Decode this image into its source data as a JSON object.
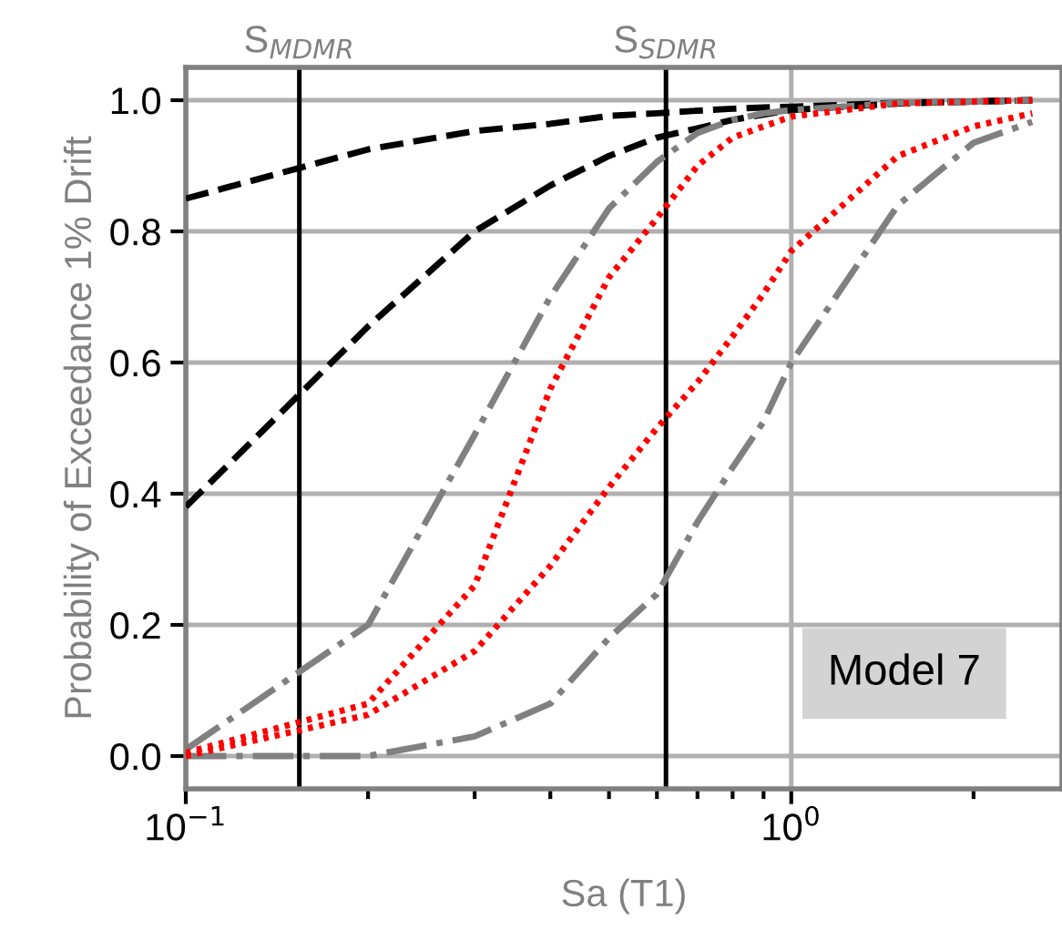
{
  "chart_data": {
    "type": "line",
    "xlabel": "Sa (T1)",
    "ylabel": "Probability of Exceedance 1% Drift",
    "log": "x",
    "grid": true,
    "marker": "none",
    "x": [
      0.1,
      0.2,
      0.3,
      0.4,
      0.5,
      0.6,
      0.7,
      0.8,
      0.9,
      1.0,
      1.5,
      2.0,
      2.5
    ],
    "xlim": [
      0.1,
      2.8
    ],
    "xticks": [
      {
        "value": 0.1,
        "label": "10$^{−1}$"
      },
      {
        "value": 0.2,
        "label": null
      },
      {
        "value": 0.3,
        "label": null
      },
      {
        "value": 0.4,
        "label": null
      },
      {
        "value": 0.5,
        "label": null
      },
      {
        "value": 0.6,
        "label": null
      },
      {
        "value": 0.7,
        "label": null
      },
      {
        "value": 0.8,
        "label": null
      },
      {
        "value": 0.9,
        "label": null
      },
      {
        "value": 1.0,
        "label": "10$^{0}$"
      },
      {
        "value": 2.0,
        "label": null
      }
    ],
    "ylim": [
      -0.05,
      1.05
    ],
    "yticks": [
      {
        "value": 0.0,
        "label": "0.0"
      },
      {
        "value": 0.2,
        "label": "0.2"
      },
      {
        "value": 0.4,
        "label": "0.4"
      },
      {
        "value": 0.6,
        "label": "0.6"
      },
      {
        "value": 0.8,
        "label": "0.8"
      },
      {
        "value": 1.0,
        "label": "1.0"
      }
    ],
    "series": [
      {
        "color": "#000000",
        "line_style": "dashed",
        "values": [
          0.85,
          0.925,
          0.953,
          0.964,
          0.976,
          0.98,
          0.984,
          0.987,
          0.989,
          0.99,
          0.996,
          0.998,
          1.0
        ]
      },
      {
        "color": "#000000",
        "line_style": "dashed",
        "values": [
          0.38,
          0.655,
          0.8,
          0.87,
          0.915,
          0.943,
          0.957,
          0.97,
          0.978,
          0.985,
          0.995,
          0.998,
          1.0
        ]
      },
      {
        "color": "#808080",
        "line_style": "dashdot",
        "values": [
          0.01,
          0.2,
          0.49,
          0.7,
          0.835,
          0.906,
          0.95,
          0.97,
          0.98,
          0.985,
          0.996,
          0.998,
          1.0
        ]
      },
      {
        "color": "#ff0000",
        "line_style": "dotted",
        "values": [
          0.005,
          0.08,
          0.26,
          0.56,
          0.73,
          0.82,
          0.9,
          0.943,
          0.96,
          0.975,
          0.995,
          0.998,
          1.0
        ]
      },
      {
        "color": "#ff0000",
        "line_style": "dotted",
        "values": [
          0.0,
          0.063,
          0.16,
          0.29,
          0.41,
          0.5,
          0.57,
          0.64,
          0.705,
          0.77,
          0.915,
          0.96,
          0.98
        ]
      },
      {
        "color": "#808080",
        "line_style": "dashdot",
        "values": [
          0.0,
          0.0,
          0.03,
          0.08,
          0.18,
          0.247,
          0.357,
          0.44,
          0.51,
          0.6,
          0.84,
          0.935,
          0.967
        ]
      }
    ],
    "ref_lines": [
      {
        "axis": "x",
        "value": 0.154,
        "label": "S$_{MDMR}$",
        "color": "#000000"
      },
      {
        "axis": "x",
        "value": 0.621,
        "label": "S$_{SDMR}$",
        "color": "#000000"
      }
    ],
    "annotations": [
      "Model 7"
    ]
  }
}
